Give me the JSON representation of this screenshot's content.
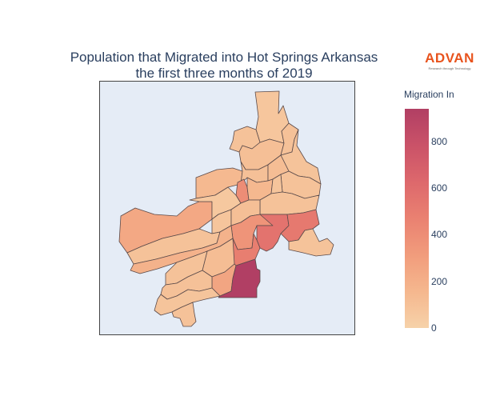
{
  "title": {
    "line1": "Population that Migrated into Hot Springs Arkansas",
    "line2": "the first three months of 2019"
  },
  "brand": {
    "name": "ADVAN",
    "tagline": "Research through Technology",
    "color": "#e8531d"
  },
  "colorbar": {
    "title": "Migration In",
    "min": 0,
    "max": 940,
    "tick_labels": [
      "0",
      "200",
      "400",
      "600",
      "800"
    ],
    "tick_values": [
      0,
      200,
      400,
      600,
      800
    ],
    "colorscale": [
      "#f6d2a9",
      "#f5b78e",
      "#f19c7c",
      "#ea8171",
      "#dd686c",
      "#ca5268",
      "#b13f64"
    ]
  },
  "chart_data": {
    "type": "choropleth",
    "title": "Population that Migrated into Hot Springs Arkansas the first three months of 2019",
    "colorbar_title": "Migration In",
    "range": [
      0,
      940
    ],
    "regions": [
      {
        "id": "north-top",
        "value": 70
      },
      {
        "id": "north-left-small",
        "value": 95
      },
      {
        "id": "north-mid",
        "value": 110
      },
      {
        "id": "north-right",
        "value": 100
      },
      {
        "id": "north-east",
        "value": 85
      },
      {
        "id": "west-large-1",
        "value": 145
      },
      {
        "id": "west-large-2",
        "value": 245
      },
      {
        "id": "center-1",
        "value": 105
      },
      {
        "id": "center-2",
        "value": 120
      },
      {
        "id": "center-3",
        "value": 90
      },
      {
        "id": "center-4",
        "value": 150
      },
      {
        "id": "center-5",
        "value": 80
      },
      {
        "id": "center-6",
        "value": 95
      },
      {
        "id": "center-7",
        "value": 60
      },
      {
        "id": "center-8",
        "value": 75
      },
      {
        "id": "center-9",
        "value": 110
      },
      {
        "id": "center-10",
        "value": 90
      },
      {
        "id": "center-red",
        "value": 490
      },
      {
        "id": "center-red-top",
        "value": 400
      },
      {
        "id": "center-red-2",
        "value": 360
      },
      {
        "id": "east-1",
        "value": 560
      },
      {
        "id": "east-2",
        "value": 520
      },
      {
        "id": "southwest-1",
        "value": 185
      },
      {
        "id": "southwest-2",
        "value": 120
      },
      {
        "id": "southwest-3",
        "value": 95
      },
      {
        "id": "south-center",
        "value": 260
      },
      {
        "id": "south-dark",
        "value": 940
      },
      {
        "id": "south-1",
        "value": 100
      },
      {
        "id": "south-2",
        "value": 80
      },
      {
        "id": "south-tail",
        "value": 90
      },
      {
        "id": "far-south",
        "value": 85
      }
    ]
  }
}
